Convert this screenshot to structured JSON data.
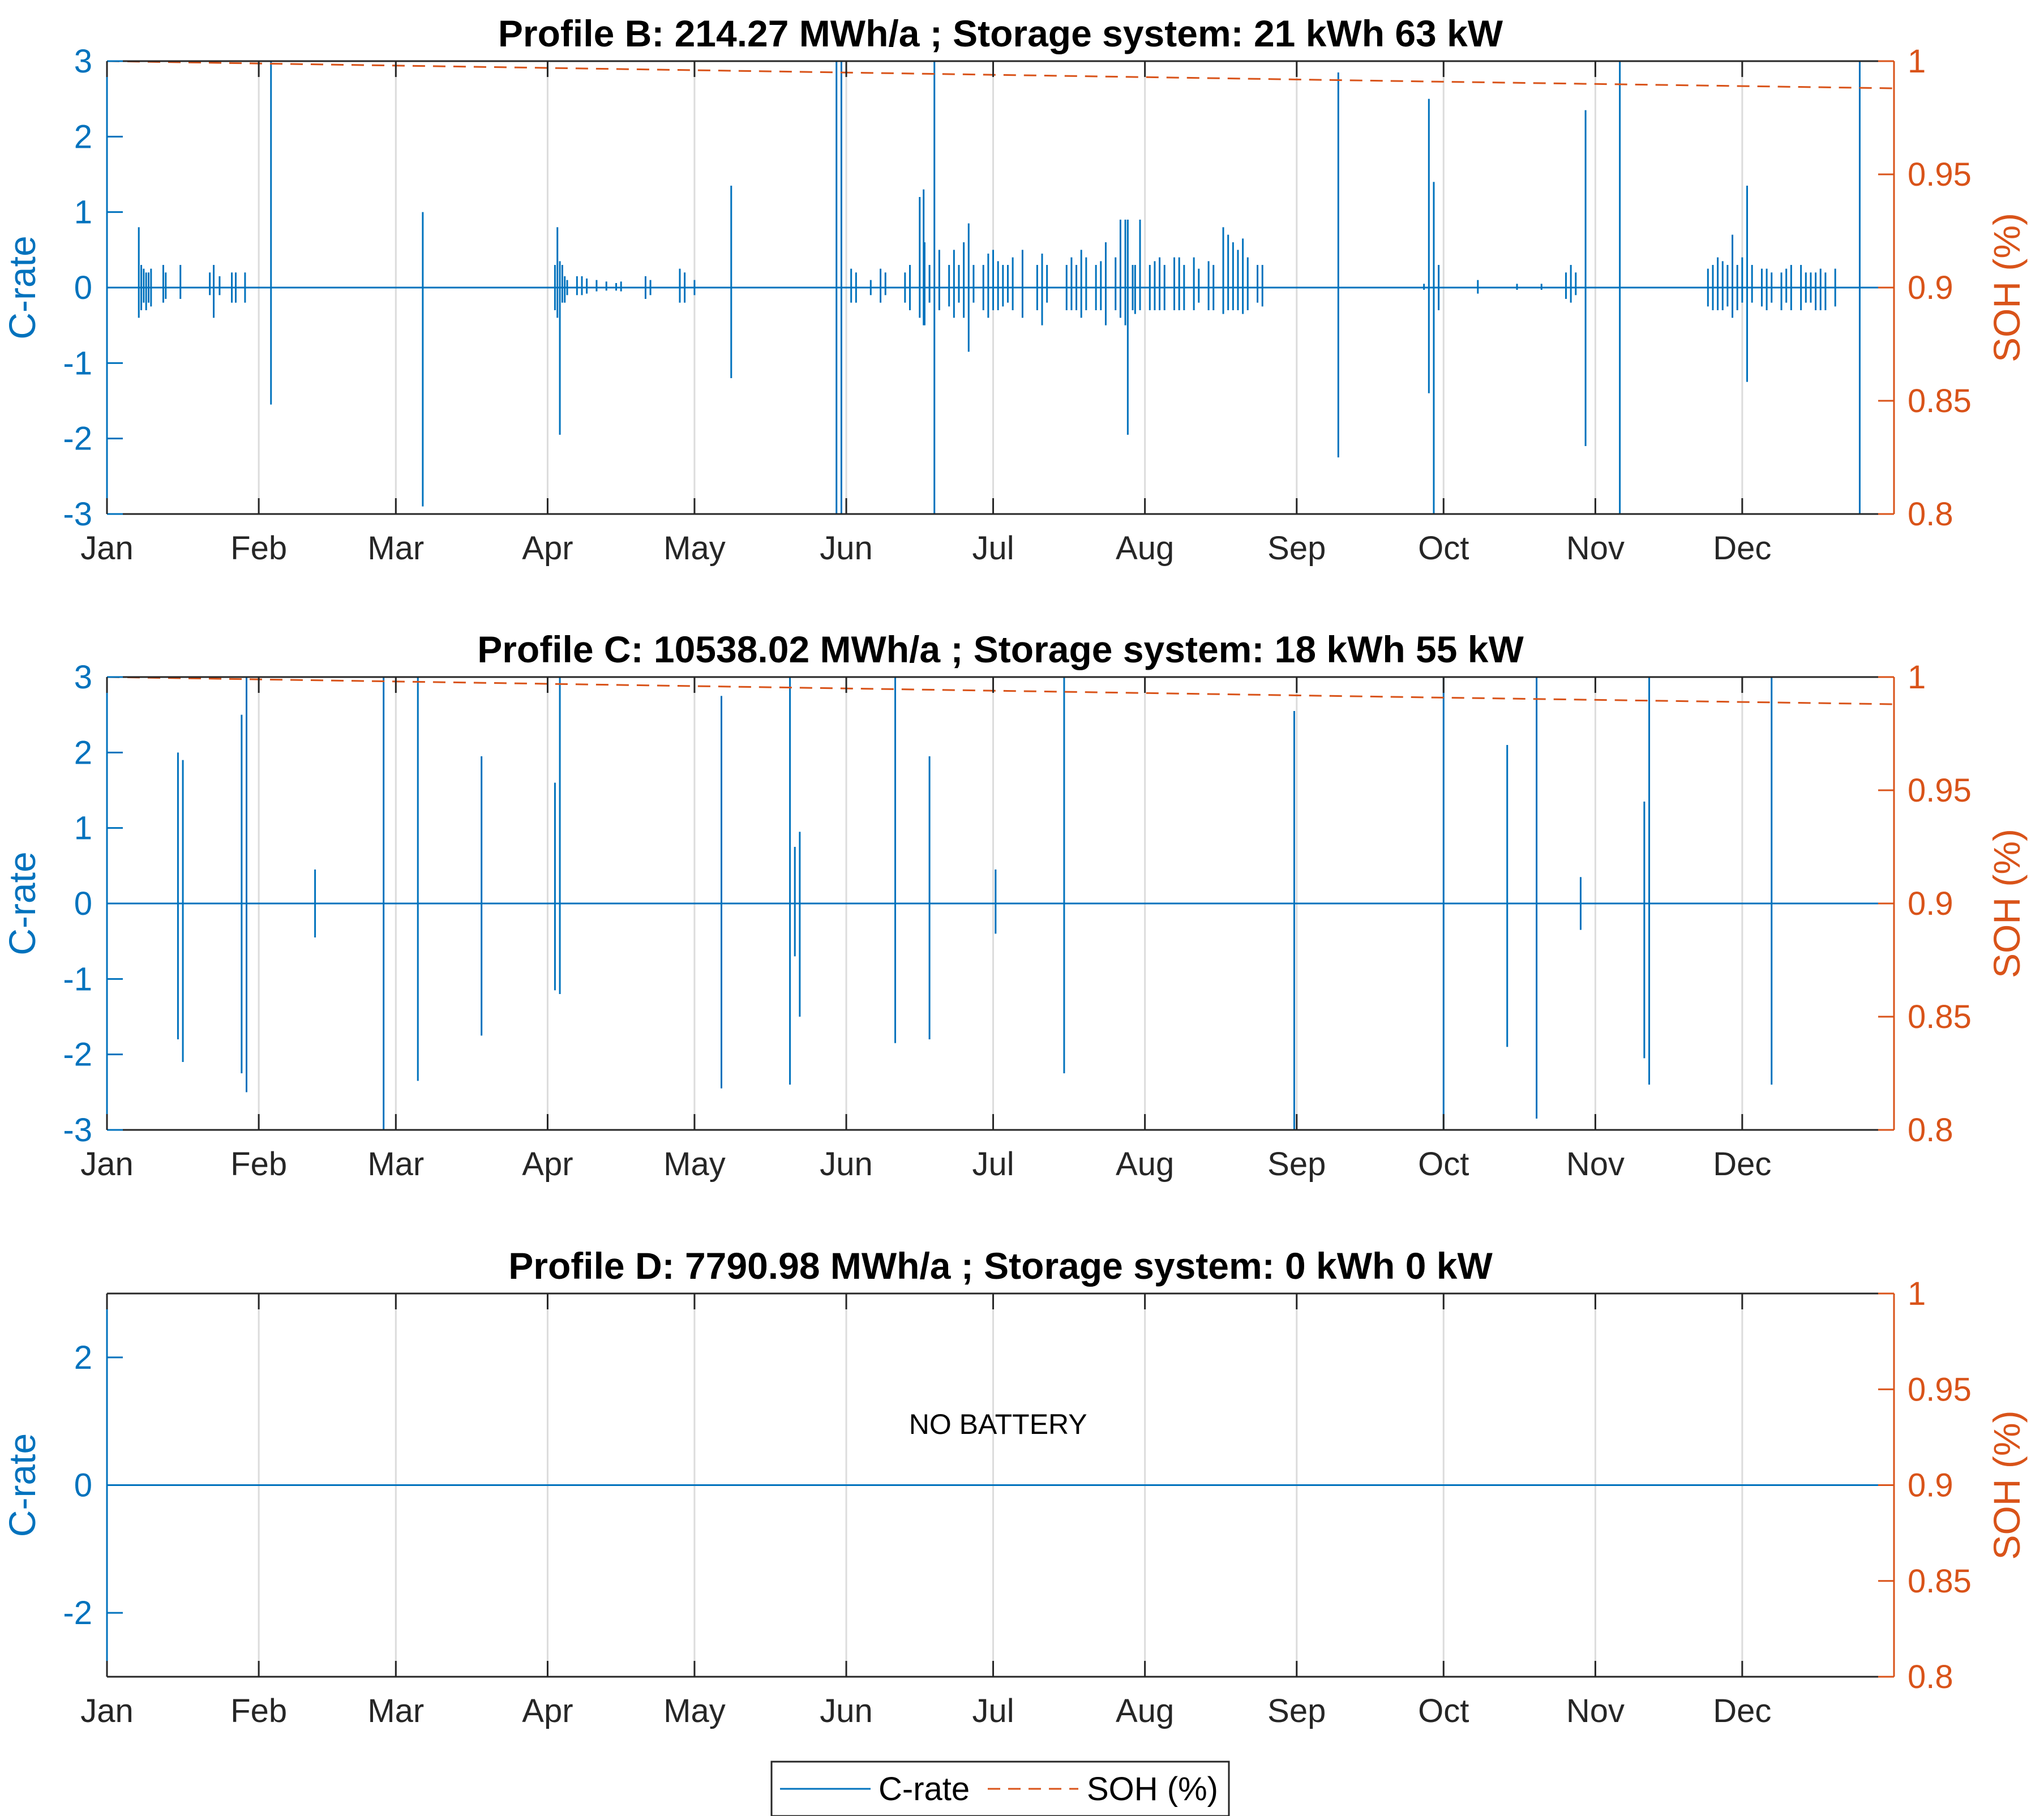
{
  "chart_data": [
    {
      "type": "line",
      "title": "Profile B: 214.27 MWh/a ; Storage system: 21 kWh 63 kW",
      "ylabel_left": "C-rate",
      "ylabel_right": "SOH (%)",
      "x_ticks": [
        "Jan",
        "Feb",
        "Mar",
        "Apr",
        "May",
        "Jun",
        "Jul",
        "Aug",
        "Sep",
        "Oct",
        "Nov",
        "Dec"
      ],
      "x_tick_days": [
        0,
        31,
        59,
        90,
        120,
        151,
        181,
        212,
        243,
        273,
        304,
        334
      ],
      "xlim": [
        0,
        365
      ],
      "ylim_left": [
        -3,
        3
      ],
      "ylim_right": [
        0.8,
        1
      ],
      "yticks_left": [
        "3",
        "2",
        "1",
        "0",
        "-1",
        "-2",
        "-3"
      ],
      "yticks_left_values": [
        3,
        2,
        1,
        0,
        -1,
        -2,
        -3
      ],
      "yticks_right": [
        "1",
        "0.95",
        "0.9",
        "0.85",
        "0.8"
      ],
      "yticks_right_values": [
        1,
        0.95,
        0.9,
        0.85,
        0.8
      ],
      "grid": "x-major",
      "annotation": "",
      "c_rate_spikes": [
        [
          6.5,
          0.8,
          -0.4
        ],
        [
          7,
          0.3,
          -0.3
        ],
        [
          7.5,
          0.25,
          -0.2
        ],
        [
          8,
          0.2,
          -0.3
        ],
        [
          8.5,
          0.2,
          -0.2
        ],
        [
          9,
          0.25,
          -0.25
        ],
        [
          11.5,
          0.3,
          -0.2
        ],
        [
          12,
          0.2,
          -0.15
        ],
        [
          15,
          0.3,
          -0.15
        ],
        [
          21,
          0.2,
          -0.1
        ],
        [
          21.8,
          0.3,
          -0.4
        ],
        [
          23,
          0.15,
          -0.1
        ],
        [
          25.5,
          0.2,
          -0.2
        ],
        [
          26.3,
          0.2,
          -0.2
        ],
        [
          28.2,
          0.2,
          -0.2
        ],
        [
          33.5,
          3,
          -1.55
        ],
        [
          64.5,
          1,
          -2.9
        ],
        [
          91.5,
          0.3,
          -0.3
        ],
        [
          92,
          0.8,
          -0.4
        ],
        [
          92.5,
          0.35,
          -1.95
        ],
        [
          93,
          0.3,
          -0.2
        ],
        [
          93.5,
          0.15,
          -0.2
        ],
        [
          94,
          0.1,
          -0.1
        ],
        [
          96,
          0.15,
          -0.1
        ],
        [
          97,
          0.15,
          -0.1
        ],
        [
          98,
          0.12,
          -0.08
        ],
        [
          100,
          0.1,
          -0.05
        ],
        [
          102,
          0.08,
          -0.04
        ],
        [
          104,
          0.06,
          -0.04
        ],
        [
          105,
          0.08,
          -0.05
        ],
        [
          110,
          0.15,
          -0.15
        ],
        [
          111,
          0.1,
          -0.1
        ],
        [
          117,
          0.25,
          -0.2
        ],
        [
          118,
          0.2,
          -0.2
        ],
        [
          120,
          0.1,
          -0.1
        ],
        [
          127.5,
          1.35,
          -1.2
        ],
        [
          149,
          3,
          -3
        ],
        [
          150,
          3,
          -3
        ],
        [
          152,
          0.25,
          -0.2
        ],
        [
          153,
          0.2,
          -0.2
        ],
        [
          156,
          0.1,
          -0.1
        ],
        [
          158,
          0.25,
          -0.2
        ],
        [
          159,
          0.2,
          -0.1
        ],
        [
          163,
          0.2,
          -0.2
        ],
        [
          164,
          0.3,
          -0.3
        ],
        [
          166,
          1.2,
          -0.4
        ],
        [
          166.8,
          1.3,
          -0.5
        ],
        [
          167,
          0.6,
          -0.5
        ],
        [
          168,
          0.3,
          -0.2
        ],
        [
          169,
          3,
          -3
        ],
        [
          170,
          0.5,
          -0.3
        ],
        [
          172,
          0.3,
          -0.25
        ],
        [
          173,
          0.5,
          -0.4
        ],
        [
          174,
          0.3,
          -0.2
        ],
        [
          175,
          0.6,
          -0.4
        ],
        [
          176,
          0.85,
          -0.85
        ],
        [
          177,
          0.3,
          -0.2
        ],
        [
          179,
          0.3,
          -0.3
        ],
        [
          180,
          0.45,
          -0.4
        ],
        [
          181,
          0.5,
          -0.3
        ],
        [
          182,
          0.35,
          -0.3
        ],
        [
          183,
          0.3,
          -0.25
        ],
        [
          184,
          0.3,
          -0.2
        ],
        [
          185,
          0.4,
          -0.3
        ],
        [
          187,
          0.5,
          -0.4
        ],
        [
          190,
          0.3,
          -0.3
        ],
        [
          191,
          0.45,
          -0.5
        ],
        [
          192,
          0.3,
          -0.2
        ],
        [
          196,
          0.3,
          -0.3
        ],
        [
          197,
          0.4,
          -0.3
        ],
        [
          198,
          0.3,
          -0.3
        ],
        [
          199,
          0.5,
          -0.4
        ],
        [
          200,
          0.4,
          -0.3
        ],
        [
          202,
          0.3,
          -0.3
        ],
        [
          203,
          0.35,
          -0.3
        ],
        [
          204,
          0.6,
          -0.5
        ],
        [
          206,
          0.4,
          -0.3
        ],
        [
          207,
          0.9,
          -0.4
        ],
        [
          208,
          0.9,
          -0.5
        ],
        [
          208.5,
          0.9,
          -1.95
        ],
        [
          209.5,
          0.3,
          -0.3
        ],
        [
          210,
          0.3,
          -0.35
        ],
        [
          211,
          0.9,
          -0.3
        ],
        [
          213,
          0.3,
          -0.3
        ],
        [
          214,
          0.35,
          -0.3
        ],
        [
          215,
          0.4,
          -0.3
        ],
        [
          216,
          0.3,
          -0.3
        ],
        [
          218,
          0.4,
          -0.3
        ],
        [
          219,
          0.4,
          -0.3
        ],
        [
          220,
          0.3,
          -0.3
        ],
        [
          222,
          0.4,
          -0.3
        ],
        [
          223,
          0.25,
          -0.2
        ],
        [
          225,
          0.35,
          -0.3
        ],
        [
          226,
          0.3,
          -0.3
        ],
        [
          228,
          0.8,
          -0.35
        ],
        [
          229,
          0.7,
          -0.3
        ],
        [
          230,
          0.6,
          -0.3
        ],
        [
          231,
          0.5,
          -0.3
        ],
        [
          232,
          0.65,
          -0.35
        ],
        [
          233,
          0.4,
          -0.3
        ],
        [
          235,
          0.3,
          -0.2
        ],
        [
          236,
          0.3,
          -0.25
        ],
        [
          251.5,
          2.85,
          -2.25
        ],
        [
          269,
          0.05,
          -0.03
        ],
        [
          270,
          2.5,
          -1.4
        ],
        [
          271,
          1.4,
          -3
        ],
        [
          272,
          0.3,
          -0.3
        ],
        [
          280,
          0.1,
          -0.08
        ],
        [
          288,
          0.05,
          -0.03
        ],
        [
          293,
          0.05,
          -0.03
        ],
        [
          298,
          0.2,
          -0.15
        ],
        [
          299,
          0.3,
          -0.2
        ],
        [
          300,
          0.2,
          -0.1
        ],
        [
          302,
          2.35,
          -2.1
        ],
        [
          309,
          3,
          -3
        ],
        [
          327,
          0.25,
          -0.25
        ],
        [
          328,
          0.3,
          -0.3
        ],
        [
          329,
          0.4,
          -0.3
        ],
        [
          330,
          0.35,
          -0.3
        ],
        [
          331,
          0.3,
          -0.25
        ],
        [
          332,
          0.7,
          -0.4
        ],
        [
          333,
          0.3,
          -0.3
        ],
        [
          334,
          0.4,
          -0.2
        ],
        [
          335,
          1.35,
          -1.25
        ],
        [
          336,
          0.3,
          -0.2
        ],
        [
          338,
          0.25,
          -0.25
        ],
        [
          339,
          0.25,
          -0.3
        ],
        [
          340,
          0.2,
          -0.2
        ],
        [
          342,
          0.2,
          -0.3
        ],
        [
          343,
          0.25,
          -0.2
        ],
        [
          344,
          0.3,
          -0.3
        ],
        [
          346,
          0.3,
          -0.3
        ],
        [
          347,
          0.2,
          -0.2
        ],
        [
          348,
          0.2,
          -0.2
        ],
        [
          349,
          0.2,
          -0.3
        ],
        [
          350,
          0.25,
          -0.3
        ],
        [
          351,
          0.2,
          -0.3
        ],
        [
          353,
          0.25,
          -0.25
        ],
        [
          358,
          3,
          -3
        ]
      ],
      "soh": {
        "x": [
          0,
          90,
          180,
          270,
          365
        ],
        "y": [
          1.0,
          0.997,
          0.994,
          0.991,
          0.988
        ]
      }
    },
    {
      "type": "line",
      "title": "Profile C: 10538.02 MWh/a ; Storage system: 18 kWh 55 kW",
      "ylabel_left": "C-rate",
      "ylabel_right": "SOH (%)",
      "x_ticks": [
        "Jan",
        "Feb",
        "Mar",
        "Apr",
        "May",
        "Jun",
        "Jul",
        "Aug",
        "Sep",
        "Oct",
        "Nov",
        "Dec"
      ],
      "x_tick_days": [
        0,
        31,
        59,
        90,
        120,
        151,
        181,
        212,
        243,
        273,
        304,
        334
      ],
      "xlim": [
        0,
        365
      ],
      "ylim_left": [
        -3,
        3
      ],
      "ylim_right": [
        0.8,
        1
      ],
      "yticks_left": [
        "3",
        "2",
        "1",
        "0",
        "-1",
        "-2",
        "-3"
      ],
      "yticks_left_values": [
        3,
        2,
        1,
        0,
        -1,
        -2,
        -3
      ],
      "yticks_right": [
        "1",
        "0.95",
        "0.9",
        "0.85",
        "0.8"
      ],
      "yticks_right_values": [
        1,
        0.95,
        0.9,
        0.85,
        0.8
      ],
      "grid": "x-major",
      "annotation": "",
      "c_rate_spikes": [
        [
          14.5,
          2.0,
          -1.8
        ],
        [
          15.5,
          1.9,
          -2.1
        ],
        [
          27.5,
          2.5,
          -2.25
        ],
        [
          28.5,
          3,
          -2.5
        ],
        [
          42.5,
          0.45,
          -0.45
        ],
        [
          56.5,
          3,
          -3
        ],
        [
          63.5,
          3,
          -2.35
        ],
        [
          76.5,
          1.95,
          -1.75
        ],
        [
          91.5,
          1.6,
          -1.15
        ],
        [
          92.5,
          3,
          -1.2
        ],
        [
          125.5,
          2.75,
          -2.45
        ],
        [
          139.5,
          3,
          -2.4
        ],
        [
          140.5,
          0.75,
          -0.7
        ],
        [
          141.5,
          0.95,
          -1.5
        ],
        [
          161,
          3,
          -1.85
        ],
        [
          168,
          1.95,
          -1.8
        ],
        [
          181.5,
          0.45,
          -0.4
        ],
        [
          195.5,
          3,
          -2.25
        ],
        [
          242.5,
          2.55,
          -3
        ],
        [
          273,
          3,
          -3
        ],
        [
          286,
          2.1,
          -1.9
        ],
        [
          292,
          3,
          -2.85
        ],
        [
          301,
          0.35,
          -0.35
        ],
        [
          314,
          1.35,
          -2.05
        ],
        [
          315,
          3,
          -2.4
        ],
        [
          340,
          3,
          -2.4
        ]
      ],
      "soh": {
        "x": [
          0,
          90,
          180,
          270,
          365
        ],
        "y": [
          1.0,
          0.997,
          0.994,
          0.991,
          0.988
        ]
      }
    },
    {
      "type": "line",
      "title": "Profile D: 7790.98 MWh/a ; Storage system: 0 kWh 0 kW",
      "ylabel_left": "C-rate",
      "ylabel_right": "SOH (%)",
      "x_ticks": [
        "Jan",
        "Feb",
        "Mar",
        "Apr",
        "May",
        "Jun",
        "Jul",
        "Aug",
        "Sep",
        "Oct",
        "Nov",
        "Dec"
      ],
      "x_tick_days": [
        0,
        31,
        59,
        90,
        120,
        151,
        181,
        212,
        243,
        273,
        304,
        334
      ],
      "xlim": [
        0,
        365
      ],
      "ylim_left": [
        -3,
        3
      ],
      "ylim_right": [
        0.8,
        1
      ],
      "yticks_left": [
        "2",
        "0",
        "-2"
      ],
      "yticks_left_values": [
        2,
        0,
        -2
      ],
      "yticks_right": [
        "1",
        "0.95",
        "0.9",
        "0.85",
        "0.8"
      ],
      "yticks_right_values": [
        1,
        0.95,
        0.9,
        0.85,
        0.8
      ],
      "grid": "x-major",
      "annotation": "NO BATTERY",
      "annotation_x": 182,
      "annotation_y": 0.8,
      "c_rate_spikes": [],
      "soh": {
        "x": [
          0,
          365
        ],
        "y": [
          1.0,
          1.0
        ]
      }
    }
  ],
  "legend": [
    {
      "label": "C-rate",
      "color": "#0072BD",
      "style": "solid"
    },
    {
      "label": "SOH (%)",
      "color": "#D95319",
      "style": "dashed"
    }
  ],
  "colors": {
    "c_rate": "#0072BD",
    "soh": "#D95319",
    "axis": "#262626",
    "grid": "#dcdcdc"
  }
}
